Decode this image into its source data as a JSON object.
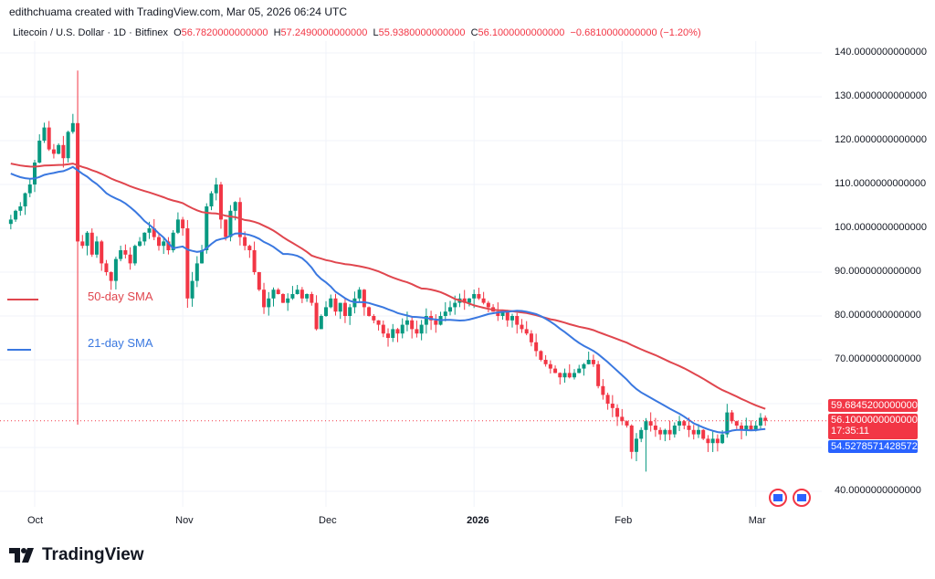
{
  "header": {
    "attribution": "edithchuama created with TradingView.com, Mar 05, 2026 06:24 UTC"
  },
  "legend": {
    "symbol": "Litecoin / U.S. Dollar · 1D · Bitfinex",
    "open_label": "O",
    "open": "56.7820000000000",
    "high_label": "H",
    "high": "57.2490000000000",
    "low_label": "L",
    "low": "55.9380000000000",
    "close_label": "C",
    "close": "56.1000000000000",
    "change": "−0.6810000000000 (−1.20%)"
  },
  "price_labels": {
    "sma50": "59.6845200000000",
    "last": "56.1000000000000",
    "countdown": "17:35:11",
    "sma21": "54.5278571428572"
  },
  "logo": {
    "text": "TradingView"
  },
  "colors": {
    "up": "#089981",
    "down": "#f23645",
    "sma50": "#e0464e",
    "sma21": "#3a78e0"
  },
  "chart_data": {
    "type": "candlestick",
    "start_date": "2025-09-26",
    "closes": [
      102,
      104,
      105,
      108,
      110,
      115,
      120,
      123,
      118,
      117,
      119,
      116,
      122,
      124,
      97,
      96,
      99,
      94,
      97,
      92,
      90,
      88,
      93,
      95,
      94,
      92,
      96,
      97,
      99,
      100,
      98,
      96,
      97,
      95,
      99,
      102,
      100,
      84,
      88,
      92,
      95,
      105,
      108,
      110,
      102,
      98,
      104,
      106,
      98,
      96,
      95,
      90,
      86,
      82,
      84,
      86,
      85,
      83,
      84,
      85,
      86,
      84,
      85,
      83,
      77,
      80,
      82,
      84,
      81,
      83,
      80,
      82,
      84,
      86,
      82,
      80,
      79,
      78,
      76,
      75,
      77,
      76,
      78,
      79,
      77,
      76,
      78,
      80,
      79,
      78,
      80,
      81,
      82,
      83,
      84,
      83,
      84,
      85,
      84,
      83,
      82,
      81,
      80,
      81,
      79,
      80,
      78,
      77,
      76,
      74,
      72,
      70,
      69,
      68,
      67,
      66,
      67,
      66,
      67,
      68,
      69,
      70,
      69,
      64,
      62,
      60,
      59,
      57,
      56,
      55,
      49,
      52,
      54,
      56,
      55,
      54,
      53,
      54,
      53,
      55,
      56,
      55,
      54,
      53,
      54,
      52,
      51,
      52,
      51,
      53,
      58,
      56,
      55,
      54,
      55,
      54,
      55,
      56.78,
      56.1
    ],
    "wick_overrides": [
      {
        "date": "2025-10-10",
        "high": 136,
        "low": 55.2
      },
      {
        "date": "2026-02-06",
        "low": 44.5
      }
    ],
    "overlays": [
      {
        "name": "50-day SMA",
        "period": 50
      },
      {
        "name": "21-day SMA",
        "period": 21
      }
    ],
    "y_axis": {
      "ticks": [
        "140.0000000000000",
        "130.0000000000000",
        "120.0000000000000",
        "110.0000000000000",
        "100.0000000000000",
        "90.0000000000000",
        "80.0000000000000",
        "70.0000000000000",
        "40.0000000000000"
      ],
      "range": [
        35,
        145
      ]
    },
    "x_axis": {
      "ticks": [
        "Oct",
        "Nov",
        "Dec",
        "2026",
        "Feb",
        "Mar"
      ]
    },
    "grid": true
  }
}
